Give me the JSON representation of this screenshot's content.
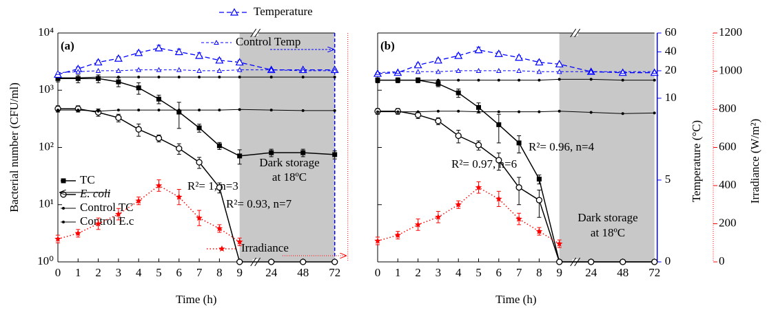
{
  "chart_data": [
    {
      "type": "line",
      "panel_label": "(a)",
      "x_label": "Time (h)",
      "y_label": "Bacterial number (CFU/ml)",
      "categories": [
        "0",
        "1",
        "2",
        "3",
        "4",
        "5",
        "6",
        "7",
        "8",
        "9",
        "24",
        "48",
        "72"
      ],
      "yscale": "log",
      "ylim": [
        1,
        10000
      ],
      "yticks": [
        {
          "value": 1,
          "label": "10⁰"
        },
        {
          "value": 10,
          "label": "10¹"
        },
        {
          "value": 100,
          "label": "10²"
        },
        {
          "value": 1000,
          "label": "10³"
        },
        {
          "value": 10000,
          "label": "10⁴"
        }
      ],
      "y2lim": [
        0,
        60
      ],
      "y2break": [
        10,
        20
      ],
      "y3lim": [
        0,
        1200
      ],
      "series": [
        {
          "name": "TC",
          "color": "#000000",
          "marker": "square",
          "line": "solid",
          "values": [
            1600,
            1600,
            1600,
            1400,
            1100,
            700,
            415,
            220,
            107,
            71,
            81,
            81,
            75
          ],
          "errors": [
            200,
            250,
            250,
            250,
            250,
            120,
            200,
            35,
            15,
            20,
            12,
            12,
            12
          ]
        },
        {
          "name": "E. coli",
          "color": "#000000",
          "marker": "circle",
          "line": "solid",
          "values": [
            475,
            475,
            410,
            330,
            207,
            145,
            96,
            55,
            20,
            1,
            1,
            1,
            1
          ],
          "errors": [
            60,
            60,
            60,
            50,
            50,
            20,
            20,
            12,
            4,
            0,
            0,
            0,
            0
          ]
        },
        {
          "name": "Control TC",
          "color": "#000000",
          "marker": "dot",
          "line": "thin",
          "values": [
            1650,
            1650,
            1700,
            1700,
            1700,
            1700,
            1700,
            1700,
            1700,
            1700,
            1700,
            1700,
            1700
          ]
        },
        {
          "name": "Control E.c",
          "color": "#000000",
          "marker": "dot",
          "line": "thin",
          "values": [
            450,
            450,
            430,
            450,
            450,
            450,
            450,
            450,
            450,
            460,
            450,
            440,
            440
          ]
        },
        {
          "name": "Temperature",
          "color": "#0000ff",
          "marker": "triangle",
          "line": "dashed",
          "axis": "y2",
          "values": [
            16,
            22,
            29,
            33,
            39,
            44,
            40,
            36,
            31,
            29,
            21,
            21,
            21
          ],
          "errors": [
            1,
            2,
            2,
            2,
            2,
            3,
            3,
            3,
            2,
            2,
            1,
            1,
            1
          ]
        },
        {
          "name": "Control Temp",
          "color": "#0000ff",
          "marker": "triangle-small",
          "line": "dashed-thin",
          "axis": "y2",
          "values": [
            18,
            19,
            20,
            20,
            21,
            21,
            21,
            20,
            20,
            21,
            21,
            20,
            20
          ]
        },
        {
          "name": "Irradiance",
          "color": "#ff0000",
          "marker": "star",
          "line": "dotted",
          "axis": "y3",
          "values": [
            120,
            150,
            200,
            250,
            320,
            400,
            340,
            230,
            175,
            105,
            null,
            null,
            null
          ],
          "errors": [
            20,
            20,
            30,
            30,
            20,
            30,
            40,
            40,
            20,
            20,
            null,
            null,
            null
          ]
        }
      ],
      "annotations": [
        "R²= 1, n=3",
        "R²= 0.93, n=7",
        "Dark storage",
        "at 18ºC"
      ]
    },
    {
      "type": "line",
      "panel_label": "(b)",
      "x_label": "Time (h)",
      "y2_label": "Temperature (°C)",
      "y3_label": "Irradiance (W/m²)",
      "categories": [
        "0",
        "1",
        "2",
        "3",
        "4",
        "5",
        "6",
        "7",
        "8",
        "9",
        "24",
        "48",
        "72"
      ],
      "yscale": "log",
      "ylim": [
        1,
        10000
      ],
      "yticks": [
        1,
        10,
        100,
        1000,
        10000
      ],
      "y2lim": [
        0,
        60
      ],
      "y2break": [
        10,
        20
      ],
      "y2ticks": [
        0,
        5,
        10,
        20,
        40,
        60
      ],
      "y3lim": [
        0,
        1200
      ],
      "y3ticks": [
        0,
        200,
        400,
        600,
        800,
        1000,
        1200
      ],
      "series": [
        {
          "color": "#000000",
          "marker": "square",
          "line": "solid",
          "values": [
            1500,
            1500,
            1500,
            1300,
            900,
            500,
            250,
            120,
            28,
            1,
            1,
            1,
            1
          ],
          "errors": [
            150,
            150,
            150,
            150,
            150,
            100,
            130,
            40,
            5,
            0,
            0,
            0,
            0
          ]
        },
        {
          "color": "#000000",
          "marker": "circle",
          "line": "solid",
          "values": [
            430,
            430,
            370,
            290,
            160,
            110,
            60,
            20,
            12,
            1,
            1,
            1,
            1
          ],
          "errors": [
            50,
            50,
            50,
            40,
            40,
            20,
            20,
            10,
            6,
            0,
            0,
            0,
            0
          ]
        },
        {
          "color": "#000000",
          "marker": "dot",
          "line": "thin",
          "values": [
            1500,
            1500,
            1500,
            1500,
            1500,
            1500,
            1500,
            1500,
            1500,
            1550,
            1550,
            1500,
            1500
          ]
        },
        {
          "color": "#000000",
          "marker": "dot",
          "line": "thin",
          "values": [
            420,
            420,
            420,
            430,
            430,
            420,
            420,
            420,
            420,
            430,
            410,
            390,
            400
          ]
        },
        {
          "color": "#0000ff",
          "marker": "triangle",
          "line": "dashed",
          "axis": "y2",
          "values": [
            17,
            18,
            26,
            31,
            36,
            42,
            38,
            34,
            29,
            27,
            19,
            18,
            18
          ],
          "errors": [
            1,
            1,
            2,
            2,
            2,
            3,
            2,
            2,
            2,
            1,
            1,
            1,
            1
          ]
        },
        {
          "color": "#0000ff",
          "marker": "triangle-small",
          "line": "dashed-thin",
          "axis": "y2",
          "values": [
            18,
            19,
            19,
            19,
            20,
            20,
            20,
            20,
            19,
            19,
            19,
            19,
            19
          ]
        },
        {
          "color": "#ff0000",
          "marker": "star",
          "line": "dotted",
          "axis": "y3",
          "values": [
            110,
            140,
            195,
            235,
            300,
            390,
            330,
            225,
            160,
            95,
            null,
            null,
            null
          ],
          "errors": [
            20,
            20,
            30,
            30,
            20,
            30,
            40,
            30,
            20,
            20,
            null,
            null,
            null
          ]
        }
      ],
      "annotations": [
        "R²= 0.97, n=6",
        "R²= 0.96, n=4",
        "Dark storage",
        "at 18ºC"
      ]
    }
  ]
}
